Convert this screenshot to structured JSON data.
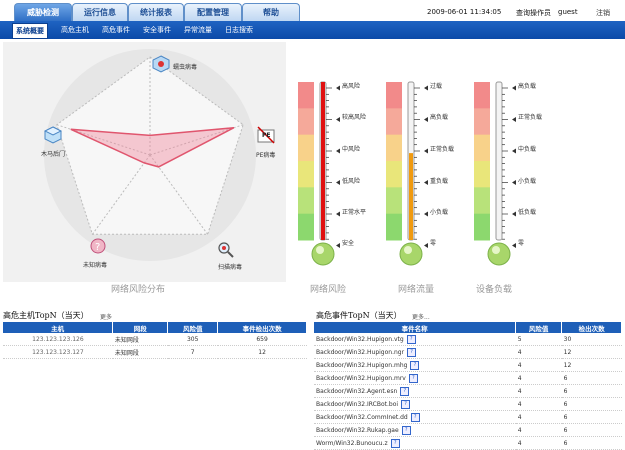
{
  "top_tabs": [
    {
      "label": "威胁检测",
      "active": true
    },
    {
      "label": "运行信息",
      "active": false
    },
    {
      "label": "统计报表",
      "active": false
    },
    {
      "label": "配置管理",
      "active": false
    },
    {
      "label": "帮助",
      "active": false
    }
  ],
  "header": {
    "datetime": "2009-06-01 11:34:05",
    "operator_label": "查询操作员",
    "operator": "guest",
    "logout": "注销"
  },
  "sub_nav": [
    {
      "label": "系统概要",
      "active": true
    },
    {
      "label": "高危主机",
      "active": false
    },
    {
      "label": "高危事件",
      "active": false
    },
    {
      "label": "安全事件",
      "active": false
    },
    {
      "label": "异常流量",
      "active": false
    },
    {
      "label": "日志搜索",
      "active": false
    }
  ],
  "radar": {
    "axes": [
      "蠕虫病毒",
      "PE病毒",
      "扫描病毒",
      "未知病毒",
      "木马后门"
    ],
    "levels": [
      0.2,
      0.9,
      0.15,
      0.1,
      0.85
    ],
    "pe_badge": "PE",
    "caption": "网络风险分布"
  },
  "gauges": [
    {
      "caption": "网络风险",
      "labels": [
        "高风险",
        "较高风险",
        "中风险",
        "低风险",
        "正常水平",
        "安全"
      ],
      "level": 1.0,
      "fill_color": "#e01010"
    },
    {
      "caption": "网络流量",
      "labels": [
        "过载",
        "高负载",
        "正常负载",
        "重负载",
        "小负载",
        "零"
      ],
      "level": 0.55,
      "fill_color": "#f09a10"
    },
    {
      "caption": "设备负载",
      "labels": [
        "高负载",
        "正常负载",
        "中负载",
        "小负载",
        "低负载",
        "零"
      ],
      "level": 0.0,
      "fill_color": "#cccccc"
    }
  ],
  "hosts": {
    "title": "高危主机TopN（当天）",
    "more": "更多",
    "columns": [
      "主机",
      "网段",
      "风险值",
      "事件检出次数"
    ],
    "rows": [
      [
        "123.123.123.126",
        "未知网段",
        "305",
        "659"
      ],
      [
        "123.123.123.127",
        "未知网段",
        "7",
        "12"
      ]
    ]
  },
  "events": {
    "title": "高危事件TopN（当天）",
    "more": "更多...",
    "columns": [
      "事件名称",
      "风险值",
      "检出次数"
    ],
    "rows": [
      [
        "Backdoor/Win32.Hupigon.vtg",
        "5",
        "30"
      ],
      [
        "Backdoor/Win32.Hupigon.ngr",
        "4",
        "12"
      ],
      [
        "Backdoor/Win32.Hupigon.mhg",
        "4",
        "12"
      ],
      [
        "Backdoor/Win32.Hupigon.mrv",
        "4",
        "6"
      ],
      [
        "Backdoor/Win32.Agent.esn",
        "4",
        "6"
      ],
      [
        "Backdoor/Win32.IRCBot.boi",
        "4",
        "6"
      ],
      [
        "Backdoor/Win32.CommInet.dd",
        "4",
        "6"
      ],
      [
        "Backdoor/Win32.Rukap.gae",
        "4",
        "6"
      ],
      [
        "Worm/Win32.Bunoucu.z",
        "4",
        "6"
      ]
    ]
  }
}
